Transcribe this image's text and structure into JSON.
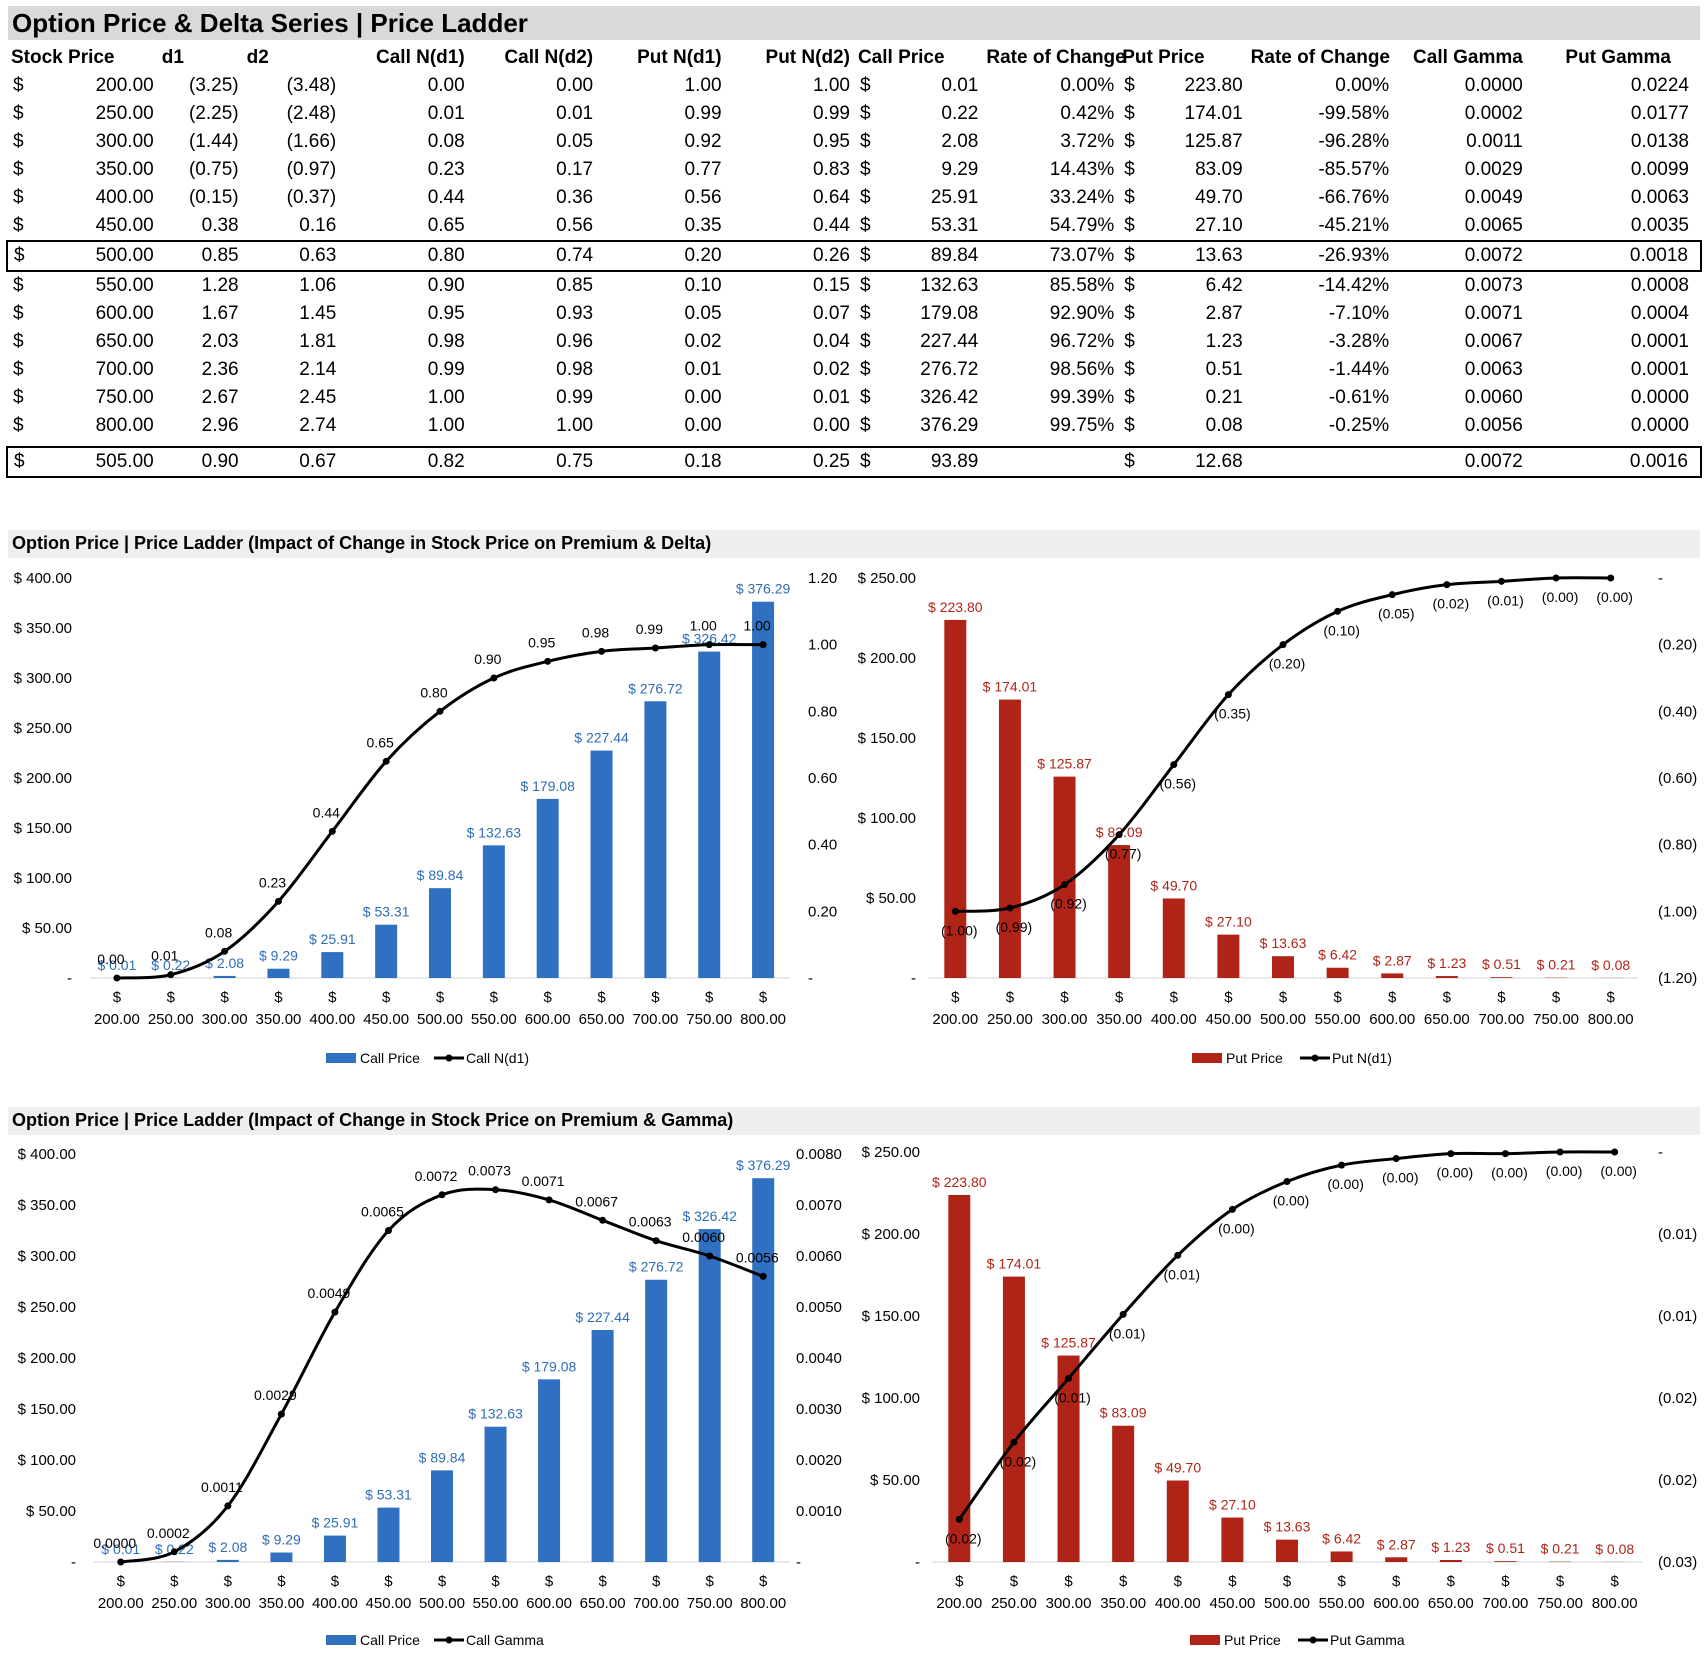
{
  "title": "Option Price & Delta Series | Price Ladder",
  "table": {
    "headers": [
      "Stock Price",
      "d1",
      "d2",
      "Call N(d1)",
      "Call N(d2)",
      "Put N(d1)",
      "Put N(d2)",
      "Call Price",
      "Rate of Change",
      "Put Price",
      "Rate of Change",
      "Call Gamma",
      "Put Gamma"
    ],
    "currency_symbol": "$",
    "rows": [
      {
        "stock": "200.00",
        "d1": "(3.25)",
        "d2": "(3.48)",
        "cn1": "0.00",
        "cn2": "0.00",
        "pn1": "1.00",
        "pn2": "1.00",
        "call": "0.01",
        "croc": "0.00%",
        "put": "223.80",
        "proc": "0.00%",
        "cg": "0.0000",
        "pg": "0.0224"
      },
      {
        "stock": "250.00",
        "d1": "(2.25)",
        "d2": "(2.48)",
        "cn1": "0.01",
        "cn2": "0.01",
        "pn1": "0.99",
        "pn2": "0.99",
        "call": "0.22",
        "croc": "0.42%",
        "put": "174.01",
        "proc": "-99.58%",
        "cg": "0.0002",
        "pg": "0.0177"
      },
      {
        "stock": "300.00",
        "d1": "(1.44)",
        "d2": "(1.66)",
        "cn1": "0.08",
        "cn2": "0.05",
        "pn1": "0.92",
        "pn2": "0.95",
        "call": "2.08",
        "croc": "3.72%",
        "put": "125.87",
        "proc": "-96.28%",
        "cg": "0.0011",
        "pg": "0.0138"
      },
      {
        "stock": "350.00",
        "d1": "(0.75)",
        "d2": "(0.97)",
        "cn1": "0.23",
        "cn2": "0.17",
        "pn1": "0.77",
        "pn2": "0.83",
        "call": "9.29",
        "croc": "14.43%",
        "put": "83.09",
        "proc": "-85.57%",
        "cg": "0.0029",
        "pg": "0.0099"
      },
      {
        "stock": "400.00",
        "d1": "(0.15)",
        "d2": "(0.37)",
        "cn1": "0.44",
        "cn2": "0.36",
        "pn1": "0.56",
        "pn2": "0.64",
        "call": "25.91",
        "croc": "33.24%",
        "put": "49.70",
        "proc": "-66.76%",
        "cg": "0.0049",
        "pg": "0.0063"
      },
      {
        "stock": "450.00",
        "d1": "0.38",
        "d2": "0.16",
        "cn1": "0.65",
        "cn2": "0.56",
        "pn1": "0.35",
        "pn2": "0.44",
        "call": "53.31",
        "croc": "54.79%",
        "put": "27.10",
        "proc": "-45.21%",
        "cg": "0.0065",
        "pg": "0.0035"
      },
      {
        "stock": "500.00",
        "d1": "0.85",
        "d2": "0.63",
        "cn1": "0.80",
        "cn2": "0.74",
        "pn1": "0.20",
        "pn2": "0.26",
        "call": "89.84",
        "croc": "73.07%",
        "put": "13.63",
        "proc": "-26.93%",
        "cg": "0.0072",
        "pg": "0.0018",
        "boxed": true
      },
      {
        "stock": "550.00",
        "d1": "1.28",
        "d2": "1.06",
        "cn1": "0.90",
        "cn2": "0.85",
        "pn1": "0.10",
        "pn2": "0.15",
        "call": "132.63",
        "croc": "85.58%",
        "put": "6.42",
        "proc": "-14.42%",
        "cg": "0.0073",
        "pg": "0.0008"
      },
      {
        "stock": "600.00",
        "d1": "1.67",
        "d2": "1.45",
        "cn1": "0.95",
        "cn2": "0.93",
        "pn1": "0.05",
        "pn2": "0.07",
        "call": "179.08",
        "croc": "92.90%",
        "put": "2.87",
        "proc": "-7.10%",
        "cg": "0.0071",
        "pg": "0.0004"
      },
      {
        "stock": "650.00",
        "d1": "2.03",
        "d2": "1.81",
        "cn1": "0.98",
        "cn2": "0.96",
        "pn1": "0.02",
        "pn2": "0.04",
        "call": "227.44",
        "croc": "96.72%",
        "put": "1.23",
        "proc": "-3.28%",
        "cg": "0.0067",
        "pg": "0.0001"
      },
      {
        "stock": "700.00",
        "d1": "2.36",
        "d2": "2.14",
        "cn1": "0.99",
        "cn2": "0.98",
        "pn1": "0.01",
        "pn2": "0.02",
        "call": "276.72",
        "croc": "98.56%",
        "put": "0.51",
        "proc": "-1.44%",
        "cg": "0.0063",
        "pg": "0.0001"
      },
      {
        "stock": "750.00",
        "d1": "2.67",
        "d2": "2.45",
        "cn1": "1.00",
        "cn2": "0.99",
        "pn1": "0.00",
        "pn2": "0.01",
        "call": "326.42",
        "croc": "99.39%",
        "put": "0.21",
        "proc": "-0.61%",
        "cg": "0.0060",
        "pg": "0.0000"
      },
      {
        "stock": "800.00",
        "d1": "2.96",
        "d2": "2.74",
        "cn1": "1.00",
        "cn2": "1.00",
        "pn1": "0.00",
        "pn2": "0.00",
        "call": "376.29",
        "croc": "99.75%",
        "put": "0.08",
        "proc": "-0.25%",
        "cg": "0.0056",
        "pg": "0.0000"
      },
      {
        "stock": "505.00",
        "d1": "0.90",
        "d2": "0.67",
        "cn1": "0.82",
        "cn2": "0.75",
        "pn1": "0.18",
        "pn2": "0.25",
        "call": "93.89",
        "croc": "",
        "put": "12.68",
        "proc": "",
        "cg": "0.0072",
        "pg": "0.0016",
        "boxed": true,
        "gap_before": true
      }
    ]
  },
  "section_delta_title": "Option Price | Price Ladder (Impact of Change in Stock Price on Premium & Delta)",
  "section_gamma_title": "Option Price | Price Ladder (Impact of Change in Stock Price on Premium & Gamma)",
  "colors": {
    "call_bar": "#3070c0",
    "put_bar": "#b02418",
    "line": "#000000",
    "call_label": "#2e6db5",
    "put_label": "#b02418"
  },
  "chart_data": [
    {
      "id": "call-delta",
      "type": "bar+line",
      "categories": [
        "200.00",
        "250.00",
        "300.00",
        "350.00",
        "400.00",
        "450.00",
        "500.00",
        "550.00",
        "600.00",
        "650.00",
        "700.00",
        "750.00",
        "800.00"
      ],
      "category_prefix": "$",
      "bars": {
        "name": "Call Price",
        "values": [
          0.01,
          0.22,
          2.08,
          9.29,
          25.91,
          53.31,
          89.84,
          132.63,
          179.08,
          227.44,
          276.72,
          326.42,
          376.29
        ],
        "labels": [
          "$ 0.01",
          "$ 0.22",
          "$ 2.08",
          "$ 9.29",
          "$ 25.91",
          "$ 53.31",
          "$ 89.84",
          "$ 132.63",
          "$ 179.08",
          "$ 227.44",
          "$ 276.72",
          "$ 326.42",
          "$ 376.29"
        ]
      },
      "line": {
        "name": "Call N(d1)",
        "values": [
          0.0,
          0.01,
          0.08,
          0.23,
          0.44,
          0.65,
          0.8,
          0.9,
          0.95,
          0.98,
          0.99,
          1.0,
          1.0
        ],
        "labels": [
          "0.00",
          "0.01",
          "0.08",
          "0.23",
          "0.44",
          "0.65",
          "0.80",
          "0.90",
          "0.95",
          "0.98",
          "0.99",
          "1.00",
          "1.00"
        ],
        "label_pos": "above"
      },
      "left_axis": {
        "min": 0,
        "max": 400,
        "ticks": [
          "-",
          "$ 50.00",
          "$ 100.00",
          "$ 150.00",
          "$ 200.00",
          "$ 250.00",
          "$ 300.00",
          "$ 350.00",
          "$ 400.00"
        ]
      },
      "right_axis": {
        "min": 0,
        "max": 1.2,
        "ticks": [
          "-",
          "0.20",
          "0.40",
          "0.60",
          "0.80",
          "1.00",
          "1.20"
        ]
      },
      "legend": "bottom"
    },
    {
      "id": "put-delta",
      "type": "bar+line",
      "categories": [
        "200.00",
        "250.00",
        "300.00",
        "350.00",
        "400.00",
        "450.00",
        "500.00",
        "550.00",
        "600.00",
        "650.00",
        "700.00",
        "750.00",
        "800.00"
      ],
      "category_prefix": "$",
      "bars": {
        "name": "Put Price",
        "values": [
          223.8,
          174.01,
          125.87,
          83.09,
          49.7,
          27.1,
          13.63,
          6.42,
          2.87,
          1.23,
          0.51,
          0.21,
          0.08
        ],
        "labels": [
          "$ 223.80",
          "$ 174.01",
          "$ 125.87",
          "$ 83.09",
          "$ 49.70",
          "$ 27.10",
          "$ 13.63",
          "$ 6.42",
          "$ 2.87",
          "$ 1.23",
          "$ 0.51",
          "$ 0.21",
          "$ 0.08"
        ]
      },
      "line": {
        "name": "Put N(d1)",
        "values": [
          -1.0,
          -0.99,
          -0.92,
          -0.77,
          -0.56,
          -0.35,
          -0.2,
          -0.1,
          -0.05,
          -0.02,
          -0.01,
          -0.0,
          -0.0
        ],
        "labels": [
          "(1.00)",
          "(0.99)",
          "(0.92)",
          "(0.77)",
          "(0.56)",
          "(0.35)",
          "(0.20)",
          "(0.10)",
          "(0.05)",
          "(0.02)",
          "(0.01)",
          "(0.00)",
          "(0.00)"
        ],
        "label_pos": "below"
      },
      "left_axis": {
        "min": 0,
        "max": 250,
        "ticks": [
          "-",
          "$ 50.00",
          "$ 100.00",
          "$ 150.00",
          "$ 200.00",
          "$ 250.00"
        ]
      },
      "right_axis": {
        "min": -1.2,
        "max": 0,
        "ticks": [
          "(1.20)",
          "(1.00)",
          "(0.80)",
          "(0.60)",
          "(0.40)",
          "(0.20)",
          "-"
        ]
      },
      "legend": "bottom"
    },
    {
      "id": "call-gamma",
      "type": "bar+line",
      "categories": [
        "200.00",
        "250.00",
        "300.00",
        "350.00",
        "400.00",
        "450.00",
        "500.00",
        "550.00",
        "600.00",
        "650.00",
        "700.00",
        "750.00",
        "800.00"
      ],
      "category_prefix": "$",
      "bars": {
        "name": "Call Price",
        "values": [
          0.01,
          0.22,
          2.08,
          9.29,
          25.91,
          53.31,
          89.84,
          132.63,
          179.08,
          227.44,
          276.72,
          326.42,
          376.29
        ],
        "labels": [
          "$ 0.01",
          "$ 0.22",
          "$ 2.08",
          "$ 9.29",
          "$ 25.91",
          "$ 53.31",
          "$ 89.84",
          "$ 132.63",
          "$ 179.08",
          "$ 227.44",
          "$ 276.72",
          "$ 326.42",
          "$ 376.29"
        ]
      },
      "line": {
        "name": "Call Gamma",
        "values": [
          0.0,
          0.0002,
          0.0011,
          0.0029,
          0.0049,
          0.0065,
          0.0072,
          0.0073,
          0.0071,
          0.0067,
          0.0063,
          0.006,
          0.0056
        ],
        "labels": [
          "0.0000",
          "0.0002",
          "0.0011",
          "0.0029",
          "0.0049",
          "0.0065",
          "0.0072",
          "0.0073",
          "0.0071",
          "0.0067",
          "0.0063",
          "0.0060",
          "0.0056"
        ],
        "label_pos": "above"
      },
      "left_axis": {
        "min": 0,
        "max": 400,
        "ticks": [
          "-",
          "$ 50.00",
          "$ 100.00",
          "$ 150.00",
          "$ 200.00",
          "$ 250.00",
          "$ 300.00",
          "$ 350.00",
          "$ 400.00"
        ]
      },
      "right_axis": {
        "min": 0,
        "max": 0.008,
        "ticks": [
          "-",
          "0.0010",
          "0.0020",
          "0.0030",
          "0.0040",
          "0.0050",
          "0.0060",
          "0.0070",
          "0.0080"
        ]
      },
      "legend": "bottom"
    },
    {
      "id": "put-gamma",
      "type": "bar+line",
      "categories": [
        "200.00",
        "250.00",
        "300.00",
        "350.00",
        "400.00",
        "450.00",
        "500.00",
        "550.00",
        "600.00",
        "650.00",
        "700.00",
        "750.00",
        "800.00"
      ],
      "category_prefix": "$",
      "bars": {
        "name": "Put Price",
        "values": [
          223.8,
          174.01,
          125.87,
          83.09,
          49.7,
          27.1,
          13.63,
          6.42,
          2.87,
          1.23,
          0.51,
          0.21,
          0.08
        ],
        "labels": [
          "$ 223.80",
          "$ 174.01",
          "$ 125.87",
          "$ 83.09",
          "$ 49.70",
          "$ 27.10",
          "$ 13.63",
          "$ 6.42",
          "$ 2.87",
          "$ 1.23",
          "$ 0.51",
          "$ 0.21",
          "$ 0.08"
        ]
      },
      "line": {
        "name": "Put Gamma",
        "values": [
          -0.0224,
          -0.0177,
          -0.0138,
          -0.0099,
          -0.0063,
          -0.0035,
          -0.0018,
          -0.0008,
          -0.0004,
          -0.0001,
          -0.0001,
          -0.0,
          -0.0
        ],
        "labels": [
          "(0.02)",
          "(0.02)",
          "(0.01)",
          "(0.01)",
          "(0.01)",
          "(0.00)",
          "(0.00)",
          "(0.00)",
          "(0.00)",
          "(0.00)",
          "(0.00)",
          "(0.00)",
          "(0.00)"
        ],
        "label_pos": "below"
      },
      "left_axis": {
        "min": 0,
        "max": 250,
        "ticks": [
          "-",
          "$ 50.00",
          "$ 100.00",
          "$ 150.00",
          "$ 200.00",
          "$ 250.00"
        ]
      },
      "right_axis": {
        "min": -0.025,
        "max": 0,
        "ticks": [
          "(0.03)",
          "(0.02)",
          "(0.02)",
          "(0.01)",
          "(0.01)",
          "-"
        ]
      },
      "legend": "bottom"
    }
  ]
}
